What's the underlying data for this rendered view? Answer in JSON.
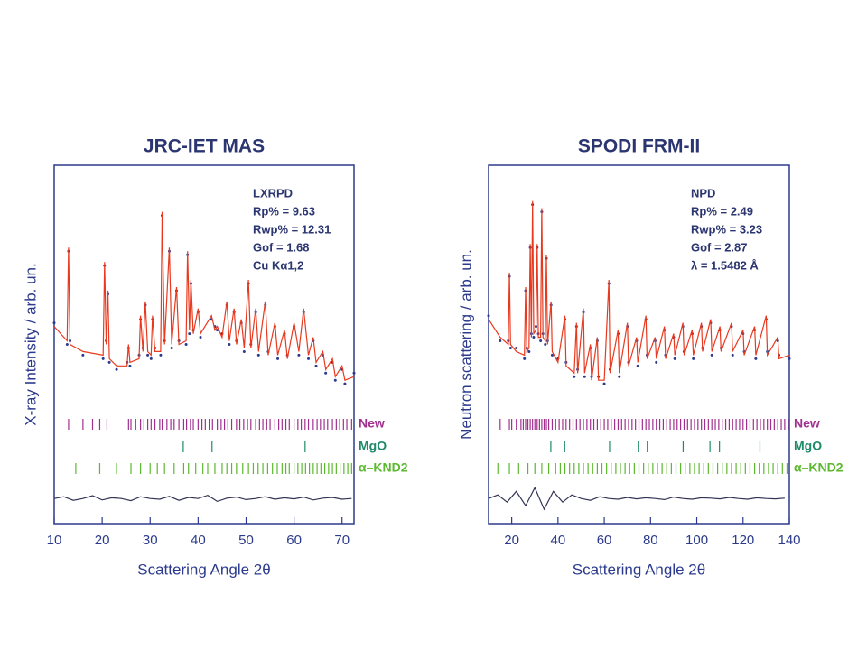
{
  "chart_data": [
    {
      "type": "rietveld",
      "title": "JRC-IET MAS",
      "xlabel": "Scattering Angle 2θ",
      "ylabel": "X-ray Intensity / arb. un.",
      "annotations": [
        "LXRPD",
        "Rp% = 9.63",
        "Rwp% = 12.31",
        "Gof = 1.68",
        "Cu Kα1,2"
      ],
      "xlim": [
        10,
        72.5
      ],
      "xticks": [
        10,
        20,
        30,
        40,
        50,
        60,
        70
      ],
      "ylim": [
        0,
        100
      ],
      "x": [
        10,
        12.7,
        13,
        13.3,
        16,
        20.2,
        20.5,
        20.85,
        21.2,
        21.5,
        23,
        25.2,
        25.5,
        25.8,
        27.7,
        28,
        28.5,
        29,
        29.5,
        30.2,
        30.5,
        31,
        32.2,
        32.5,
        33,
        34,
        34.5,
        35.5,
        36,
        37.5,
        37.8,
        38.2,
        38.5,
        39,
        40,
        40.5,
        42.8,
        43.5,
        44,
        45,
        46,
        46.5,
        47.5,
        48,
        49,
        49.6,
        50.5,
        51,
        52,
        52.6,
        54,
        54.6,
        56,
        56.6,
        58,
        58.6,
        60,
        61,
        62,
        63,
        64,
        64.6,
        66,
        66.6,
        68,
        68.6,
        70,
        70.6,
        72.5
      ],
      "series": [
        {
          "color": "#2b3a8c",
          "values": [
            56,
            50,
            76,
            51,
            47,
            46,
            72,
            51,
            64,
            45,
            43,
            45,
            49,
            44,
            47,
            57,
            49,
            61,
            47,
            46,
            57,
            49,
            47,
            86,
            51,
            76,
            49,
            65,
            51,
            50,
            75,
            53,
            67,
            54,
            59,
            52,
            57,
            55,
            54,
            53,
            61,
            50,
            59,
            51,
            56,
            48,
            67,
            50,
            59,
            47,
            61,
            48,
            55,
            46,
            53,
            47,
            55,
            47,
            59,
            46,
            51,
            44,
            47,
            42,
            45,
            40,
            43,
            39,
            42
          ]
        },
        {
          "color": "#e8391f",
          "values": [
            55,
            51,
            77,
            50,
            48,
            47,
            73,
            50,
            65,
            46,
            44,
            44,
            50,
            45,
            46,
            58,
            48,
            62,
            48,
            47,
            58,
            48,
            48,
            87,
            50,
            77,
            50,
            66,
            50,
            51,
            76,
            54,
            68,
            53,
            60,
            53,
            58,
            54,
            55,
            52,
            62,
            51,
            60,
            50,
            57,
            49,
            68,
            49,
            60,
            48,
            62,
            47,
            56,
            47,
            54,
            46,
            56,
            48,
            60,
            47,
            52,
            45,
            48,
            43,
            46,
            41,
            44,
            40,
            41
          ]
        },
        {
          "color": "#333355",
          "x": [
            10,
            12,
            14,
            16,
            18,
            20,
            22,
            24,
            26,
            28,
            30,
            32,
            34,
            36,
            38,
            40,
            42,
            44,
            46,
            48,
            50,
            52,
            54,
            56,
            58,
            60,
            62,
            64,
            66,
            68,
            70,
            72
          ],
          "values": [
            7,
            7.5,
            6.5,
            7,
            7.8,
            6.6,
            7.2,
            7,
            6.4,
            7.5,
            7,
            6.8,
            7.6,
            6.5,
            7.3,
            7,
            7.9,
            6.2,
            7.1,
            7.4,
            6.7,
            7,
            7.5,
            6.8,
            7.2,
            6.9,
            7.4,
            6.6,
            7.1,
            7.3,
            6.8,
            7
          ]
        }
      ],
      "phases": [
        {
          "name": "New",
          "color": "#a0308e",
          "positions": [
            13,
            16,
            18,
            19.5,
            21,
            25.5,
            26,
            27,
            28,
            28.7,
            29.5,
            30.2,
            31,
            32,
            32.5,
            33.5,
            34.3,
            35,
            36,
            37,
            37.6,
            38.4,
            39,
            40,
            40.8,
            41.5,
            42.3,
            43,
            44,
            44.8,
            45.5,
            46.2,
            47,
            48,
            48.7,
            49.5,
            50.3,
            51,
            52,
            52.8,
            53.5,
            54.3,
            55,
            56,
            56.8,
            57.5,
            58.3,
            59,
            60,
            60.8,
            61.5,
            62.3,
            63,
            64,
            64.8,
            65.5,
            66.3,
            67,
            68,
            68.8,
            69.5,
            70.3,
            71,
            72
          ]
        },
        {
          "name": "MgO",
          "color": "#1f8a6a",
          "positions": [
            36.9,
            42.9,
            62.3
          ]
        },
        {
          "name": "α–KND2",
          "color": "#5cb82f",
          "positions": [
            14.5,
            19.5,
            23,
            26,
            28,
            30,
            31.5,
            33,
            35,
            37,
            38,
            39.5,
            41,
            42,
            43.5,
            45,
            46,
            47,
            48,
            49.3,
            50.5,
            51.5,
            52.5,
            53.5,
            54.5,
            55.5,
            56.5,
            57.5,
            58.3,
            59,
            60,
            60.8,
            61.6,
            62.4,
            63.2,
            64,
            64.8,
            65.6,
            66.4,
            67.2,
            68,
            68.8,
            69.6,
            70.4,
            71.2,
            72
          ]
        }
      ]
    },
    {
      "type": "rietveld",
      "title": "SPODI FRM-II",
      "xlabel": "Scattering Angle 2θ",
      "ylabel": "Neutron scattering / arb. un.",
      "annotations": [
        "NPD",
        "Rp% = 2.49",
        "Rwp% = 3.23",
        "Gof = 2.87",
        "λ = 1.5482 Å"
      ],
      "xlim": [
        10,
        140
      ],
      "xticks": [
        20,
        40,
        60,
        80,
        100,
        120,
        140
      ],
      "ylim": [
        0,
        100
      ],
      "x": [
        10,
        15,
        18.5,
        19,
        19.5,
        22,
        25.5,
        26,
        26.5,
        27.5,
        28,
        28.5,
        29,
        29.5,
        30.5,
        31,
        31.5,
        32.5,
        33,
        33.5,
        34.5,
        35,
        35.5,
        37,
        37.5,
        40,
        43,
        43.5,
        47,
        48,
        48.5,
        51,
        51.5,
        54,
        54.5,
        57,
        57.5,
        60,
        62,
        62.5,
        66,
        66.5,
        70,
        70.5,
        74,
        74.5,
        78,
        78.5,
        82,
        82.5,
        86,
        86.5,
        90,
        90.5,
        94,
        94.5,
        98,
        98.5,
        102,
        102.5,
        106,
        106.5,
        110,
        110.5,
        115,
        115.5,
        120,
        120.5,
        125,
        125.5,
        130,
        130.5,
        135,
        135.5,
        140
      ],
      "series": [
        {
          "color": "#2b3a8c",
          "values": [
            58,
            51,
            51,
            69,
            49,
            49,
            46,
            65,
            49,
            48,
            77,
            53,
            89,
            52,
            55,
            77,
            53,
            51,
            87,
            53,
            50,
            74,
            51,
            61,
            47,
            46,
            57,
            45,
            41,
            55,
            43,
            59,
            41,
            49,
            41,
            51,
            41,
            39,
            67,
            43,
            53,
            41,
            55,
            45,
            51,
            44,
            57,
            47,
            51,
            45,
            54,
            47,
            52,
            46,
            55,
            48,
            53,
            46,
            55,
            49,
            56,
            47,
            54,
            49,
            55,
            47,
            53,
            48,
            54,
            46,
            57,
            48,
            51,
            47,
            46
          ]
        },
        {
          "color": "#e8391f",
          "values": [
            57,
            52,
            50,
            70,
            50,
            48,
            47,
            66,
            48,
            49,
            78,
            52,
            90,
            53,
            54,
            78,
            52,
            52,
            88,
            52,
            51,
            75,
            50,
            62,
            48,
            45,
            58,
            44,
            42,
            56,
            42,
            60,
            42,
            50,
            40,
            52,
            40,
            40,
            68,
            42,
            54,
            42,
            56,
            44,
            52,
            45,
            58,
            46,
            52,
            46,
            55,
            46,
            53,
            47,
            56,
            47,
            54,
            47,
            56,
            48,
            57,
            48,
            55,
            48,
            56,
            48,
            54,
            47,
            55,
            47,
            58,
            47,
            52,
            46,
            47
          ]
        },
        {
          "color": "#333355",
          "x": [
            10,
            14,
            18,
            22,
            26,
            30,
            34,
            38,
            42,
            46,
            50,
            54,
            58,
            62,
            66,
            70,
            74,
            78,
            82,
            86,
            90,
            94,
            98,
            102,
            106,
            110,
            114,
            118,
            122,
            126,
            130,
            134,
            138
          ],
          "values": [
            7,
            8,
            6,
            9,
            5,
            10,
            4,
            9,
            6,
            8,
            7,
            6.5,
            7.5,
            7,
            6.8,
            7.3,
            6.9,
            7.2,
            7,
            6.7,
            7.4,
            7,
            6.8,
            7.2,
            7.1,
            6.9,
            7.3,
            7,
            6.8,
            7.2,
            7,
            6.9,
            7.1
          ]
        }
      ],
      "phases": [
        {
          "name": "New",
          "color": "#a0308e",
          "positions": [
            15,
            19,
            20,
            22,
            24,
            25,
            26,
            27,
            28,
            29,
            30,
            31,
            32,
            33,
            34,
            35,
            36,
            37.5,
            39,
            40.5,
            42,
            43.5,
            45,
            46.5,
            48,
            49.5,
            51,
            52.5,
            54,
            55.5,
            57,
            58.5,
            60,
            61.5,
            63,
            64.5,
            66,
            67.5,
            69,
            70.5,
            72,
            73.5,
            75,
            76.5,
            78,
            79.5,
            81,
            82.5,
            84,
            85.5,
            87,
            88.5,
            90,
            91.5,
            93,
            94.5,
            96,
            97.5,
            99,
            100.5,
            102,
            103.5,
            105,
            106.5,
            108,
            109.5,
            111,
            112.5,
            114,
            115.5,
            117,
            118.5,
            120,
            121.5,
            123,
            124.5,
            126,
            127.5,
            129,
            130.5,
            132,
            133.5,
            135,
            136.5,
            138,
            139.5
          ]
        },
        {
          "name": "MgO",
          "color": "#1f8a6a",
          "positions": [
            36.9,
            42.9,
            62.3,
            74.7,
            78.6,
            94.1,
            105.7,
            109.8,
            127.3
          ]
        },
        {
          "name": "α–KND2",
          "color": "#5cb82f",
          "positions": [
            14,
            19,
            23,
            27,
            30,
            33,
            36,
            39,
            41,
            43,
            45,
            47,
            49,
            51,
            53,
            55,
            57,
            59,
            61,
            63,
            65,
            67,
            69,
            71,
            73,
            75,
            77,
            79,
            81,
            83,
            85,
            87,
            89,
            91,
            93,
            95,
            97,
            99,
            101,
            103,
            105,
            107,
            109,
            111,
            113,
            115,
            117,
            119,
            121,
            123,
            125,
            127,
            129,
            131,
            133,
            135,
            137,
            139
          ]
        }
      ]
    }
  ]
}
